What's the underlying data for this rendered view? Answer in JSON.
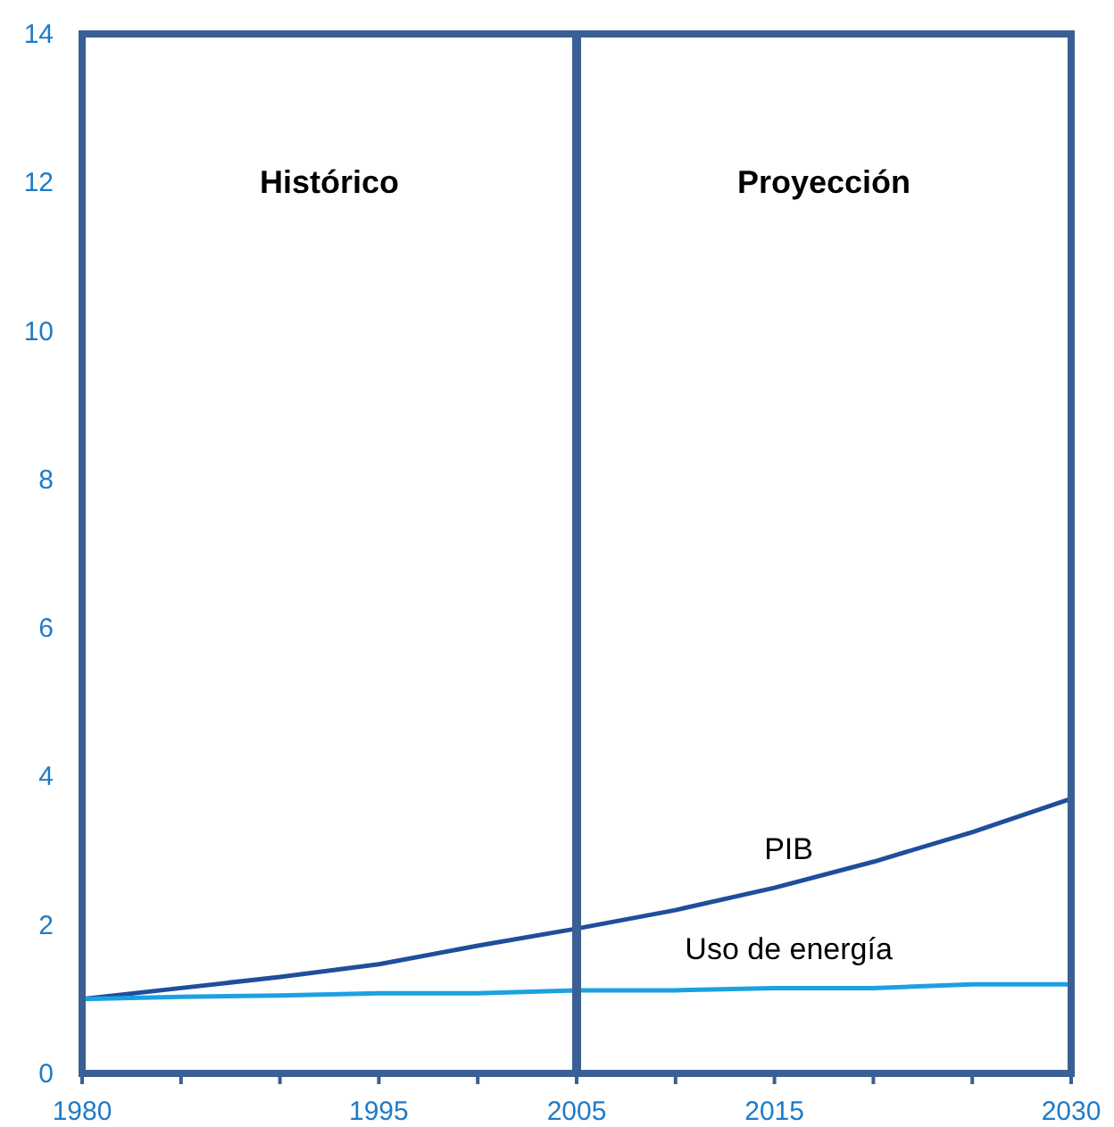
{
  "chart_data": {
    "type": "line",
    "x": [
      1980,
      1985,
      1990,
      1995,
      2000,
      2005,
      2010,
      2015,
      2020,
      2025,
      2030
    ],
    "series": [
      {
        "name": "PIB",
        "color": "#1f4e9c",
        "values": [
          1.0,
          1.15,
          1.3,
          1.47,
          1.72,
          1.95,
          2.2,
          2.5,
          2.85,
          3.25,
          3.7
        ]
      },
      {
        "name": "Uso de energía",
        "color": "#1ba1e2",
        "values": [
          1.0,
          1.03,
          1.05,
          1.08,
          1.08,
          1.12,
          1.12,
          1.15,
          1.15,
          1.2,
          1.2
        ]
      }
    ],
    "xlim": [
      1980,
      2030
    ],
    "xticks": [
      1980,
      {
        "value": 1985,
        "label": null
      },
      {
        "value": 1990,
        "label": null
      },
      1995,
      {
        "value": 2000,
        "label": null
      },
      2005,
      {
        "value": 2010,
        "label": null
      },
      2015,
      {
        "value": 2020,
        "label": null
      },
      {
        "value": 2025,
        "label": null
      },
      2030
    ],
    "ylim": [
      0,
      14
    ],
    "yticks": [
      0,
      2,
      4,
      6,
      8,
      10,
      12,
      14
    ],
    "ref_lines": [
      {
        "axis": "x",
        "value": 2005,
        "color": "#3a5f94"
      }
    ],
    "annotations": [
      "Histórico",
      "Proyección"
    ],
    "grid": false,
    "marker": "none",
    "line_style": "solid"
  }
}
